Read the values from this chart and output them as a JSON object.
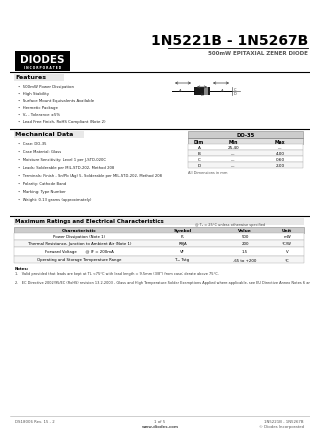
{
  "title": "1N5221B - 1N5267B",
  "subtitle": "500mW EPITAXIAL ZENER DIODE",
  "bg_color": "#ffffff",
  "features_title": "Features",
  "features": [
    "500mW Power Dissipation",
    "High Stability",
    "Surface Mount Equivalents Available",
    "Hermetic Package",
    "V₂ - Tolerance ±5%",
    "Lead Free Finish, RoHS Compliant (Note 2)"
  ],
  "mech_title": "Mechanical Data",
  "mech_items": [
    "Case: DO-35",
    "Case Material: Glass",
    "Moisture Sensitivity: Level 1 per J-STD-020C",
    "Leads: Solderable per MIL-STD-202, Method 208",
    "Terminals: Finish - Sn/Pb (Ag) 5, Solderable per MIL-STD-202, Method 208",
    "Polarity: Cathode Band",
    "Marking: Type Number",
    "Weight: 0.13 grams (approximately)"
  ],
  "dim_table_title": "DO-35",
  "dim_headers": [
    "Dim",
    "Min",
    "Max"
  ],
  "dim_rows": [
    [
      "A",
      "25.40",
      "---"
    ],
    [
      "B",
      "---",
      "4.00"
    ],
    [
      "C",
      "---",
      "0.60"
    ],
    [
      "D",
      "---",
      "2.00"
    ]
  ],
  "dim_note": "All Dimensions in mm",
  "ratings_title": "Maximum Ratings and Electrical Characteristics",
  "ratings_subtitle": "@ T₂ = 25°C unless otherwise specified",
  "ratings_headers": [
    "Characteristic",
    "Symbol",
    "Value",
    "Unit"
  ],
  "ratings_rows": [
    [
      "Power Dissipation (Note 1)",
      "P₂",
      "500",
      "mW"
    ],
    [
      "Thermal Resistance, Junction to Ambient Air (Note 1)",
      "RθJA",
      "200",
      "°C/W"
    ],
    [
      "Forward Voltage       @ IF = 200mA",
      "VF",
      "1.5",
      "V"
    ],
    [
      "Operating and Storage Temperature Range",
      "T₂, Tstg",
      "-65 to +200",
      "°C"
    ]
  ],
  "notes": [
    "1.   Valid provided that leads are kept at TL <75°C with lead length = 9.5mm (3/8\") from case; derate above 75°C.",
    "2.   EC Directive 2002/95/EC (RoHS) revision 13.2.2003 - Glass and High Temperature Solder Exemptions Applied where applicable, see EU Directive Annex Notes 6 and 7."
  ],
  "footer_left": "DS18006 Rev. 15 - 2",
  "footer_right": "1N5221B - 1N5267B"
}
